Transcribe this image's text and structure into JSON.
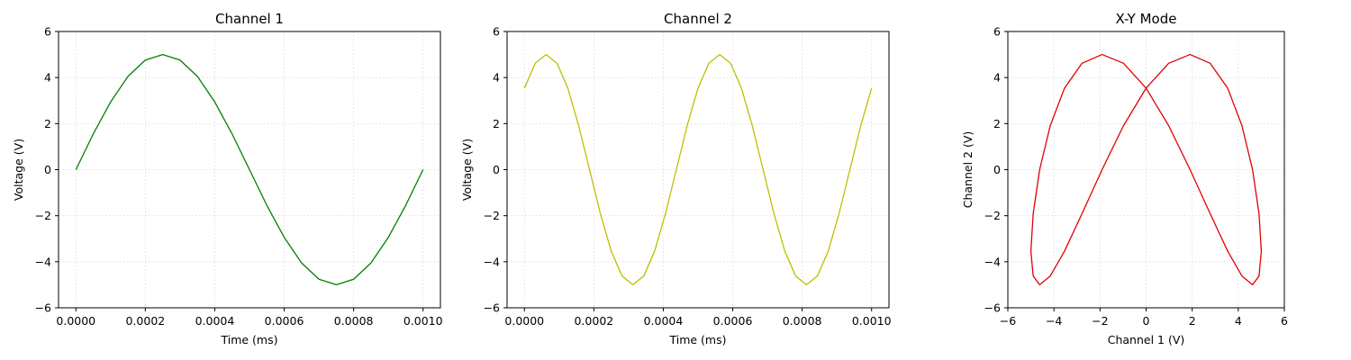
{
  "chart_data": [
    {
      "type": "line",
      "title": "Channel 1",
      "xlabel": "Time (ms)",
      "ylabel": "Voltage (V)",
      "xlim": [
        -5e-05,
        0.00105
      ],
      "ylim": [
        -6,
        6
      ],
      "xticks": [
        0.0,
        0.0002,
        0.0004,
        0.0006,
        0.0008,
        0.001
      ],
      "xtick_labels": [
        "0.0000",
        "0.0002",
        "0.0004",
        "0.0006",
        "0.0008",
        "0.0010"
      ],
      "yticks": [
        -6,
        -4,
        -2,
        0,
        2,
        4,
        6
      ],
      "ytick_labels": [
        "−6",
        "−4",
        "−2",
        "0",
        "2",
        "4",
        "6"
      ],
      "grid": true,
      "series": [
        {
          "color": "#008000",
          "x": [
            0,
            5e-05,
            0.0001,
            0.00015,
            0.0002,
            0.00025,
            0.0003,
            0.00035,
            0.0004,
            0.00045,
            0.0005,
            0.00055,
            0.0006,
            0.00065,
            0.0007,
            0.00075,
            0.0008,
            0.00085,
            0.0009,
            0.00095,
            0.001
          ],
          "y": [
            0,
            1.55,
            2.94,
            4.05,
            4.76,
            5.0,
            4.76,
            4.05,
            2.94,
            1.55,
            0,
            -1.55,
            -2.94,
            -4.05,
            -4.76,
            -5.0,
            -4.76,
            -4.05,
            -2.94,
            -1.55,
            0
          ]
        }
      ]
    },
    {
      "type": "line",
      "title": "Channel 2",
      "xlabel": "Time (ms)",
      "ylabel": "Voltage (V)",
      "xlim": [
        -5e-05,
        0.00105
      ],
      "ylim": [
        -6,
        6
      ],
      "xticks": [
        0.0,
        0.0002,
        0.0004,
        0.0006,
        0.0008,
        0.001
      ],
      "xtick_labels": [
        "0.0000",
        "0.0002",
        "0.0004",
        "0.0006",
        "0.0008",
        "0.0010"
      ],
      "yticks": [
        -6,
        -4,
        -2,
        0,
        2,
        4,
        6
      ],
      "ytick_labels": [
        "−6",
        "−4",
        "−2",
        "0",
        "2",
        "4",
        "6"
      ],
      "grid": true,
      "series": [
        {
          "color": "#bfbf00",
          "x": [
            0,
            3.125e-05,
            6.25e-05,
            9.375e-05,
            0.000125,
            0.00015625,
            0.0001875,
            0.00021875,
            0.00025,
            0.00028125,
            0.0003125,
            0.00034375,
            0.000375,
            0.00040625,
            0.0004375,
            0.00046875,
            0.0005,
            0.00053125,
            0.0005625,
            0.00059375,
            0.000625,
            0.00065625,
            0.0006875,
            0.00071875,
            0.00075,
            0.00078125,
            0.0008125,
            0.00084375,
            0.000875,
            0.00090625,
            0.0009375,
            0.00096875,
            0.001
          ],
          "y": [
            3.54,
            4.62,
            5.0,
            4.62,
            3.54,
            1.91,
            0,
            -1.91,
            -3.54,
            -4.62,
            -5.0,
            -4.62,
            -3.54,
            -1.91,
            0,
            1.91,
            3.54,
            4.62,
            5.0,
            4.62,
            3.54,
            1.91,
            0,
            -1.91,
            -3.54,
            -4.62,
            -5.0,
            -4.62,
            -3.54,
            -1.91,
            0,
            1.91,
            3.54
          ]
        }
      ]
    },
    {
      "type": "line",
      "title": "X-Y Mode",
      "xlabel": "Channel 1 (V)",
      "ylabel": "Channel 2 (V)",
      "xlim": [
        -6,
        6
      ],
      "ylim": [
        -6,
        6
      ],
      "xticks": [
        -6,
        -4,
        -2,
        0,
        2,
        4,
        6
      ],
      "xtick_labels": [
        "−6",
        "−4",
        "−2",
        "0",
        "2",
        "4",
        "6"
      ],
      "yticks": [
        -6,
        -4,
        -2,
        0,
        2,
        4,
        6
      ],
      "ytick_labels": [
        "−6",
        "−4",
        "−2",
        "0",
        "2",
        "4",
        "6"
      ],
      "grid": true,
      "series": [
        {
          "color": "#e00000",
          "x": [
            0,
            0.98,
            1.91,
            2.78,
            3.54,
            4.16,
            4.62,
            4.9,
            5.0,
            4.9,
            4.62,
            4.16,
            3.54,
            2.78,
            1.91,
            0.98,
            0,
            -0.98,
            -1.91,
            -2.78,
            -3.54,
            -4.16,
            -4.62,
            -4.9,
            -5.0,
            -4.9,
            -4.62,
            -4.16,
            -3.54,
            -2.78,
            -1.91,
            -0.98,
            0
          ],
          "y": [
            3.54,
            4.62,
            5.0,
            4.62,
            3.54,
            1.91,
            0,
            -1.91,
            -3.54,
            -4.62,
            -5.0,
            -4.62,
            -3.54,
            -1.91,
            0,
            1.91,
            3.54,
            4.62,
            5.0,
            4.62,
            3.54,
            1.91,
            0,
            -1.91,
            -3.54,
            -4.62,
            -5.0,
            -4.62,
            -3.54,
            -1.91,
            0,
            1.91,
            3.54
          ]
        }
      ]
    }
  ]
}
